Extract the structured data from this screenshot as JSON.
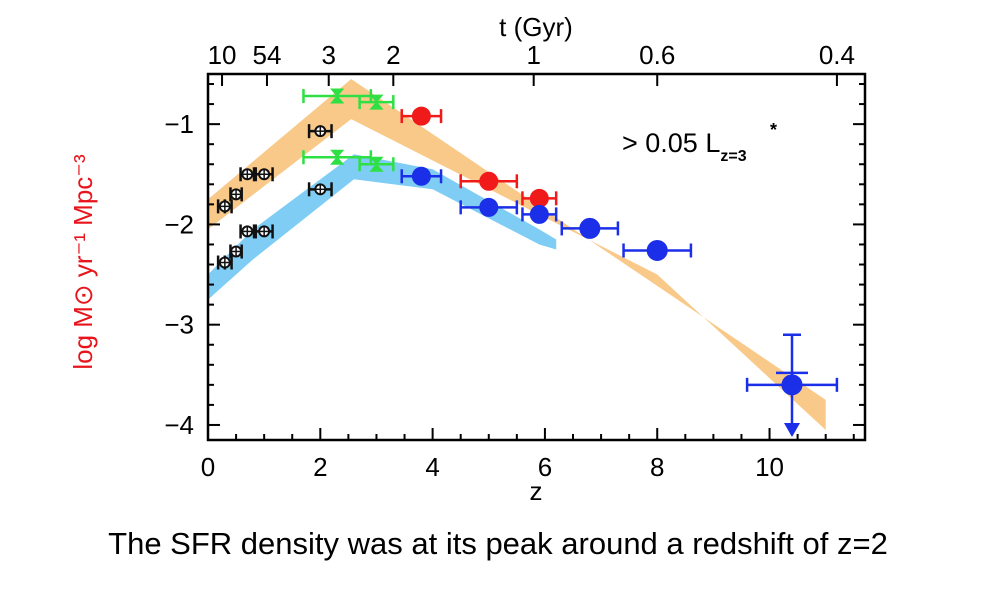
{
  "caption": "The SFR density was at its peak around a redshift of z=2",
  "chart_data": {
    "type": "scatter",
    "title": "",
    "xlabel": "z",
    "ylabel": "log M⊙ yr⁻¹ Mpc⁻³",
    "top_axis_label": "t (Gyr)",
    "xlim": [
      0,
      11.7
    ],
    "ylim": [
      -4.15,
      -0.5
    ],
    "xticks": [
      0,
      2,
      4,
      6,
      8,
      10
    ],
    "yticks": [
      -1,
      -2,
      -3,
      -4
    ],
    "top_ticks": [
      {
        "label": "10",
        "z": 0.25
      },
      {
        "label": "54",
        "z": 1.05
      },
      {
        "label": "3",
        "z": 2.15
      },
      {
        "label": "2",
        "z": 3.3
      },
      {
        "label": "1",
        "z": 5.8
      },
      {
        "label": "0.6",
        "z": 8.0
      },
      {
        "label": "0.4",
        "z": 11.2
      }
    ],
    "annotation": {
      "prefix": "> 0.05 L",
      "superscript": "*",
      "subscript": "z=3"
    },
    "grid": false,
    "bands": [
      {
        "name": "",
        "color": "#f9c98a",
        "upper": [
          [
            0,
            -1.75
          ],
          [
            2.55,
            -0.55
          ],
          [
            11,
            -3.75
          ]
        ],
        "lower": [
          [
            0,
            -2.05
          ],
          [
            2.55,
            -0.95
          ],
          [
            8,
            -2.5
          ],
          [
            11,
            -4.05
          ]
        ]
      },
      {
        "name": "",
        "color": "#7fcdf5",
        "upper": [
          [
            0,
            -2.5
          ],
          [
            0.8,
            -2.05
          ],
          [
            2.6,
            -1.3
          ],
          [
            4,
            -1.45
          ],
          [
            5.9,
            -2.05
          ],
          [
            6.2,
            -2.15
          ]
        ],
        "lower": [
          [
            0,
            -2.75
          ],
          [
            0.8,
            -2.35
          ],
          [
            2.6,
            -1.55
          ],
          [
            4,
            -1.65
          ],
          [
            5.9,
            -2.2
          ],
          [
            6.2,
            -2.25
          ]
        ]
      }
    ],
    "series": [
      {
        "name": "",
        "color": "#111111",
        "marker": "open-circle",
        "points": [
          {
            "x": 0.3,
            "y": -1.82,
            "xerr": 0.12,
            "yerr": 0.07
          },
          {
            "x": 0.5,
            "y": -1.7,
            "xerr": 0.1,
            "yerr": 0.05
          },
          {
            "x": 0.7,
            "y": -1.5,
            "xerr": 0.12,
            "yerr": 0.05
          },
          {
            "x": 1.0,
            "y": -1.5,
            "xerr": 0.15,
            "yerr": 0.05
          },
          {
            "x": 2.0,
            "y": -1.07,
            "xerr": 0.2,
            "yerr": 0.05
          },
          {
            "x": 0.3,
            "y": -2.38,
            "xerr": 0.12,
            "yerr": 0.07
          },
          {
            "x": 0.5,
            "y": -2.27,
            "xerr": 0.1,
            "yerr": 0.05
          },
          {
            "x": 0.7,
            "y": -2.07,
            "xerr": 0.12,
            "yerr": 0.05
          },
          {
            "x": 1.0,
            "y": -2.07,
            "xerr": 0.15,
            "yerr": 0.05
          },
          {
            "x": 2.0,
            "y": -1.65,
            "xerr": 0.2,
            "yerr": 0.05
          }
        ]
      },
      {
        "name": "",
        "color": "#2ee043",
        "marker": "bowtie",
        "points": [
          {
            "x": 2.3,
            "y": -0.72,
            "xerr": 0.6,
            "yerr": 0.06
          },
          {
            "x": 3.0,
            "y": -0.78,
            "xerr": 0.3,
            "yerr": 0.06
          },
          {
            "x": 2.3,
            "y": -1.33,
            "xerr": 0.6,
            "yerr": 0.06
          },
          {
            "x": 3.0,
            "y": -1.4,
            "xerr": 0.3,
            "yerr": 0.06
          }
        ]
      },
      {
        "name": "",
        "color": "#f01a1a",
        "marker": "filled-circle",
        "points": [
          {
            "x": 3.8,
            "y": -0.92,
            "xerr": 0.35,
            "yerr": 0.06
          },
          {
            "x": 5.0,
            "y": -1.57,
            "xerr": 0.5,
            "yerr": 0.06
          },
          {
            "x": 5.9,
            "y": -1.74,
            "xerr": 0.3,
            "yerr": 0.06
          }
        ]
      },
      {
        "name": "",
        "color": "#1b2fe8",
        "marker": "filled-circle",
        "points": [
          {
            "x": 3.8,
            "y": -1.52,
            "xerr": 0.35,
            "yerr": 0.06
          },
          {
            "x": 5.0,
            "y": -1.83,
            "xerr": 0.5,
            "yerr": 0.06
          },
          {
            "x": 5.9,
            "y": -1.9,
            "xerr": 0.3,
            "yerr": 0.06
          },
          {
            "x": 6.8,
            "y": -2.04,
            "xerr": 0.5,
            "yerr": 0.07
          },
          {
            "x": 8.0,
            "y": -2.26,
            "xerr": 0.6,
            "yerr": 0.08
          },
          {
            "x": 10.4,
            "y": -3.6,
            "xerr": 0.8,
            "yerr": 0.5,
            "upper_limit": true
          }
        ]
      }
    ]
  }
}
